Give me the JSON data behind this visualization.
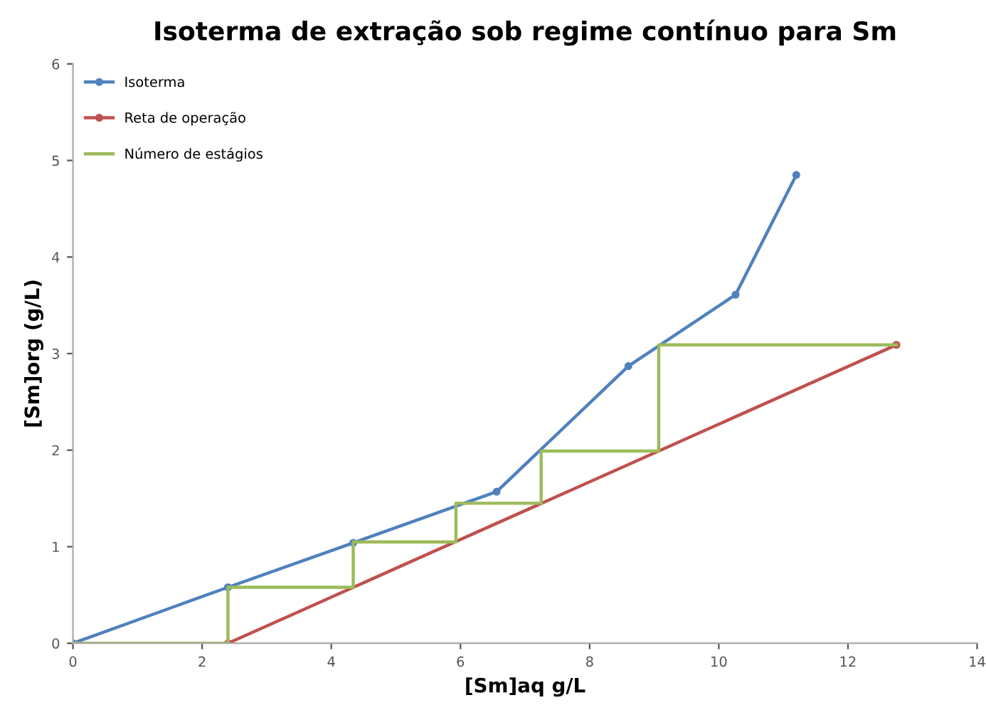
{
  "chart_data": {
    "type": "line",
    "title": "Isoterma de extração sob regime contínuo para Sm",
    "xlabel": "[Sm]aq g/L",
    "ylabel": "[Sm]org (g/L)",
    "series": [
      {
        "name": "Isoterma",
        "color": "#4f81bd",
        "marker": "circle",
        "x": [
          0,
          2.4,
          4.34,
          6.56,
          8.6,
          10.26,
          11.2
        ],
        "values": [
          0,
          0.58,
          1.04,
          1.57,
          2.87,
          3.61,
          4.85
        ]
      },
      {
        "name": "Reta de operação",
        "color": "#c0504d",
        "marker": "circle",
        "x": [
          2.4,
          12.75
        ],
        "values": [
          0,
          3.09
        ]
      },
      {
        "name": "Número de estágios",
        "color": "#9bbb59",
        "marker": "none",
        "x": [
          12.75,
          9.07,
          9.07,
          7.25,
          7.25,
          5.93,
          5.93,
          4.34,
          4.34,
          2.4,
          2.4,
          0
        ],
        "values": [
          3.09,
          3.09,
          1.99,
          1.99,
          1.45,
          1.45,
          1.05,
          1.05,
          0.58,
          0.58,
          0,
          0
        ]
      }
    ],
    "xlim": [
      0,
      14
    ],
    "xticks": [
      0,
      2,
      4,
      6,
      8,
      10,
      12,
      14
    ],
    "ylim": [
      0,
      6
    ],
    "yticks": [
      0,
      1,
      2,
      3,
      4,
      5,
      6
    ],
    "grid": false,
    "legend": "top left"
  }
}
